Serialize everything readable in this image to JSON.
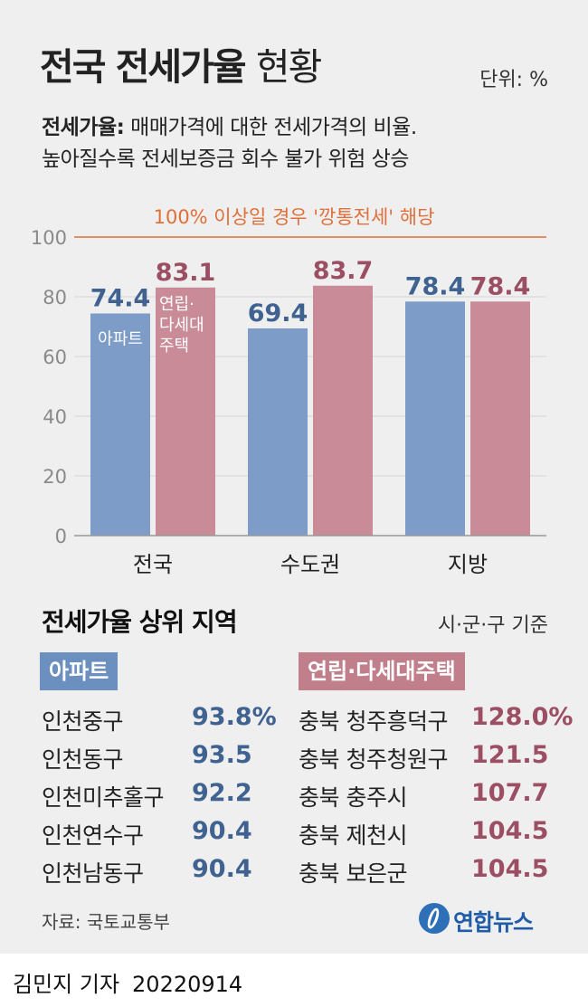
{
  "header": {
    "title": "전국 전세가율",
    "title_sub": "현황",
    "unit": "단위: %",
    "desc_label": "전세가율:",
    "desc_line1": "매매가격에 대한 전세가격의 비율.",
    "desc_line2": "높아질수록 전세보증금 회수 불가 위험 상승"
  },
  "chart_data": {
    "type": "bar",
    "categories": [
      "전국",
      "수도권",
      "지방"
    ],
    "series": [
      {
        "name": "아파트",
        "values": [
          74.4,
          69.4,
          78.4
        ],
        "color": "#7d9cc8"
      },
      {
        "name": "연립·다세대주택",
        "values": [
          83.1,
          83.7,
          78.4
        ],
        "color": "#c88b97"
      }
    ],
    "value_labels": [
      [
        "74.4",
        "69.4",
        "78.4"
      ],
      [
        "83.1",
        "83.7",
        "78.4"
      ]
    ],
    "in_bar_labels": {
      "apt": "아파트",
      "villa_line1": "연립·",
      "villa_line2": "다세대",
      "villa_line3": "주택"
    },
    "ylim": [
      0,
      100
    ],
    "yticks": [
      "0",
      "20",
      "40",
      "60",
      "80",
      "100"
    ],
    "reference_line": {
      "value": 100,
      "color": "#e0703a",
      "label": "100% 이상일 경우 '깡통전세' 해당"
    },
    "grid": true,
    "xlabel": "",
    "ylabel": ""
  },
  "ranking": {
    "title": "전세가율 상위 지역",
    "basis": "시·군·구 기준",
    "apt": {
      "label": "아파트",
      "items": [
        {
          "region": "인천중구",
          "value": "93.8%"
        },
        {
          "region": "인천동구",
          "value": "93.5"
        },
        {
          "region": "인천미추홀구",
          "value": "92.2"
        },
        {
          "region": "인천연수구",
          "value": "90.4"
        },
        {
          "region": "인천남동구",
          "value": "90.4"
        }
      ]
    },
    "villa": {
      "label": "연립·다세대주택",
      "items": [
        {
          "region": "충북 청주흥덕구",
          "value": "128.0%"
        },
        {
          "region": "충북 청주청원구",
          "value": "121.5"
        },
        {
          "region": "충북 충주시",
          "value": "107.7"
        },
        {
          "region": "충북 제천시",
          "value": "104.5"
        },
        {
          "region": "충북 보은군",
          "value": "104.5"
        }
      ]
    }
  },
  "footer": {
    "source": "자료: 국토교통부",
    "logo_text": "연합뉴스",
    "byline": "김민지 기자",
    "date": "20220914"
  },
  "colors": {
    "apt": "#7d9cc8",
    "villa": "#c88b97",
    "apt_text": "#3f6290",
    "villa_text": "#9c4e63",
    "reference": "#e0703a",
    "background": "#efefef"
  }
}
